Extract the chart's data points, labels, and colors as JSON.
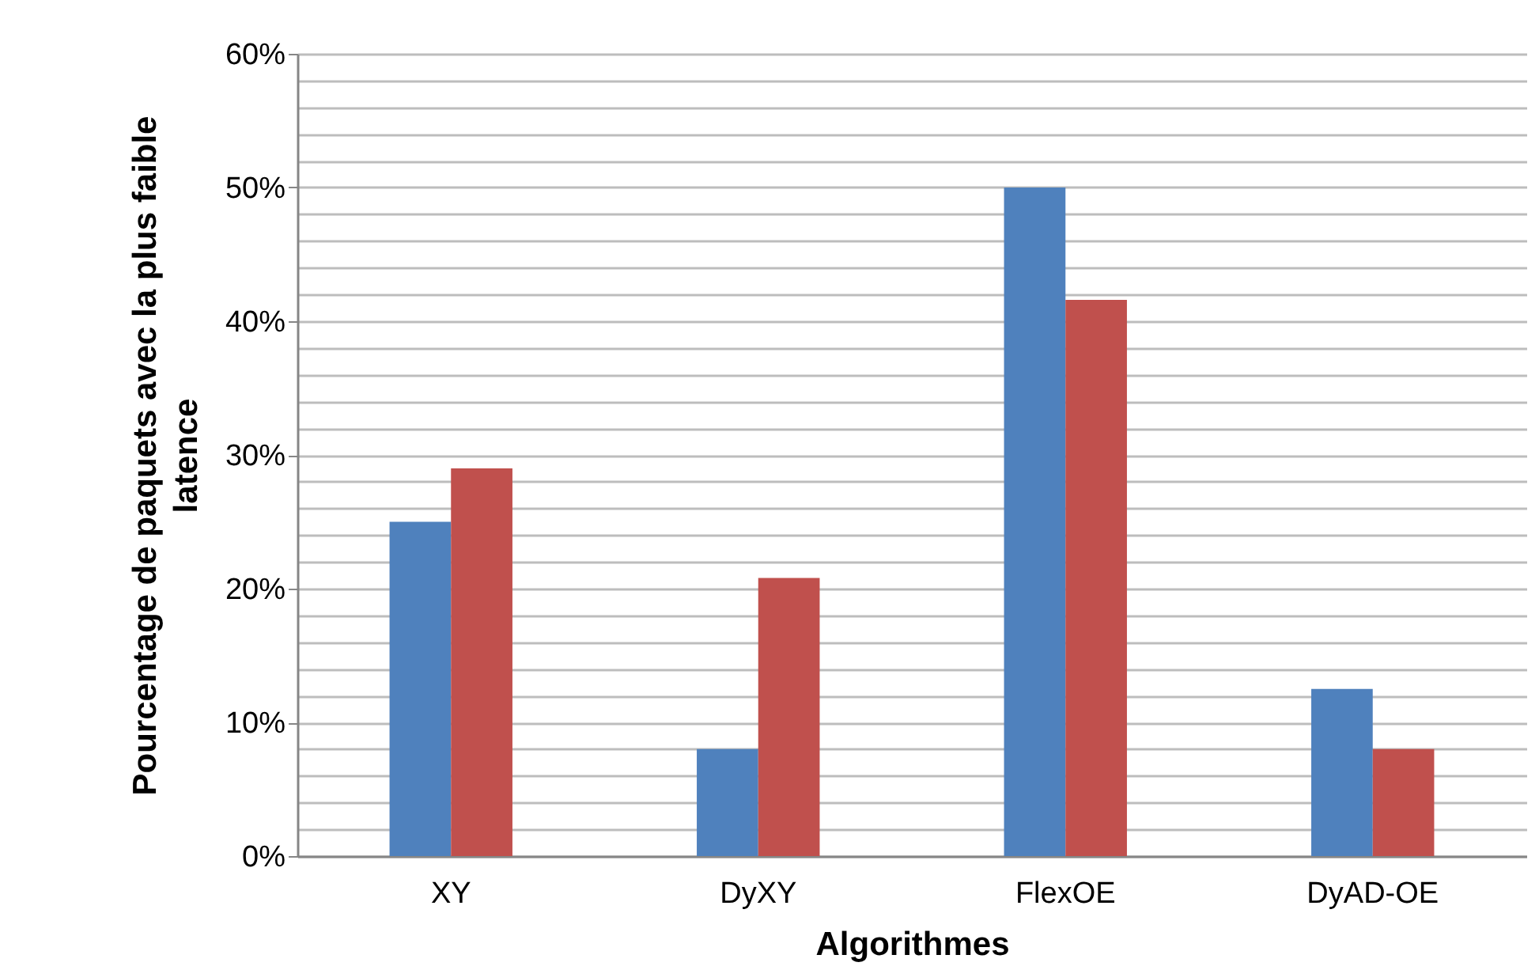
{
  "chart_data": {
    "type": "bar",
    "xlabel": "Algorithmes",
    "ylabel": "Pourcentage de paquets avec la plus faible\nlatence",
    "categories": [
      "XY",
      "DyXY",
      "FlexOE",
      "DyAD-OE"
    ],
    "series": [
      {
        "color": "#4f81bd",
        "values": [
          25,
          8,
          50,
          12.5
        ]
      },
      {
        "color": "#c0504d",
        "values": [
          29,
          20.8,
          41.6,
          8
        ]
      }
    ],
    "ylim": [
      0,
      60
    ],
    "yticks": [
      {
        "value": 0,
        "label": "0%"
      },
      {
        "value": 2,
        "label": null
      },
      {
        "value": 4,
        "label": null
      },
      {
        "value": 6,
        "label": null
      },
      {
        "value": 8,
        "label": null
      },
      {
        "value": 10,
        "label": "10%"
      },
      {
        "value": 12,
        "label": null
      },
      {
        "value": 14,
        "label": null
      },
      {
        "value": 16,
        "label": null
      },
      {
        "value": 18,
        "label": null
      },
      {
        "value": 20,
        "label": "20%"
      },
      {
        "value": 22,
        "label": null
      },
      {
        "value": 24,
        "label": null
      },
      {
        "value": 26,
        "label": null
      },
      {
        "value": 28,
        "label": null
      },
      {
        "value": 30,
        "label": "30%"
      },
      {
        "value": 32,
        "label": null
      },
      {
        "value": 34,
        "label": null
      },
      {
        "value": 36,
        "label": null
      },
      {
        "value": 38,
        "label": null
      },
      {
        "value": 40,
        "label": "40%"
      },
      {
        "value": 42,
        "label": null
      },
      {
        "value": 44,
        "label": null
      },
      {
        "value": 46,
        "label": null
      },
      {
        "value": 48,
        "label": null
      },
      {
        "value": 50,
        "label": "50%"
      },
      {
        "value": 52,
        "label": null
      },
      {
        "value": 54,
        "label": null
      },
      {
        "value": 56,
        "label": null
      },
      {
        "value": 58,
        "label": null
      },
      {
        "value": 60,
        "label": "60%"
      }
    ],
    "grid": true
  }
}
